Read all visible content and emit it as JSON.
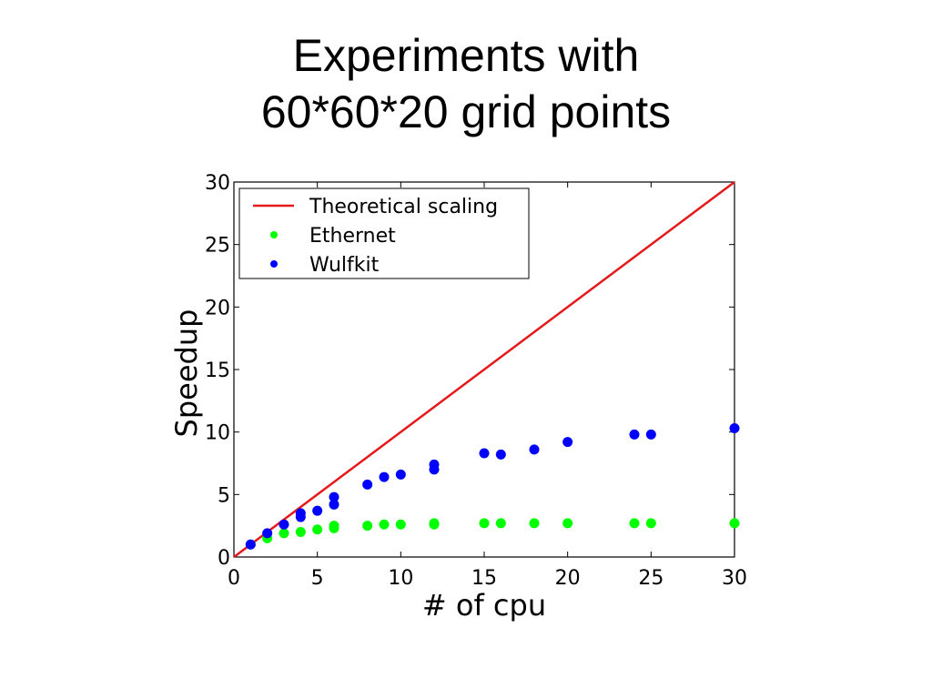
{
  "slide": {
    "title_line1": "Experiments with",
    "title_line2": "60*60*20 grid points"
  },
  "chart_data": {
    "type": "scatter",
    "xlabel": "# of cpu",
    "ylabel": "Speedup",
    "xlim": [
      0,
      30
    ],
    "ylim": [
      0,
      30
    ],
    "xticks": [
      0,
      5,
      10,
      15,
      20,
      25,
      30
    ],
    "yticks": [
      0,
      5,
      10,
      15,
      20,
      25,
      30
    ],
    "grid": false,
    "legend_position": "top-left",
    "series": [
      {
        "name": "Theoretical scaling",
        "kind": "line",
        "color": "#e41a1c",
        "x": [
          0,
          30
        ],
        "y": [
          0,
          30
        ]
      },
      {
        "name": "Ethernet",
        "kind": "scatter",
        "color": "#00ff00",
        "x": [
          1,
          2,
          3,
          4,
          5,
          6,
          6,
          8,
          9,
          10,
          12,
          12,
          15,
          16,
          18,
          20,
          24,
          25,
          30
        ],
        "y": [
          1.0,
          1.5,
          1.9,
          2.0,
          2.2,
          2.3,
          2.5,
          2.5,
          2.6,
          2.6,
          2.6,
          2.7,
          2.7,
          2.7,
          2.7,
          2.7,
          2.7,
          2.7,
          2.7
        ]
      },
      {
        "name": "Wulfkit",
        "kind": "scatter",
        "color": "#0000ff",
        "x": [
          1,
          2,
          3,
          4,
          4,
          5,
          6,
          6,
          8,
          9,
          10,
          12,
          12,
          15,
          16,
          18,
          20,
          24,
          25,
          30
        ],
        "y": [
          1.0,
          1.9,
          2.6,
          3.2,
          3.5,
          3.7,
          4.2,
          4.8,
          5.8,
          6.4,
          6.6,
          7.0,
          7.4,
          8.3,
          8.2,
          8.6,
          9.2,
          9.8,
          9.8,
          10.3
        ]
      }
    ]
  }
}
